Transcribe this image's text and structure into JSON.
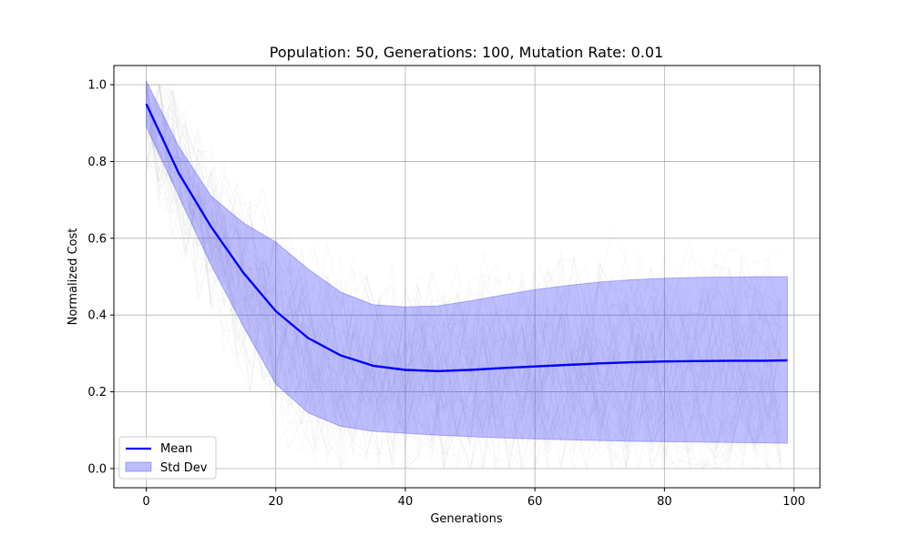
{
  "chart_data": {
    "type": "line",
    "title": "Population: 50, Generations: 100, Mutation Rate: 0.01",
    "xlabel": "Generations",
    "ylabel": "Normalized Cost",
    "xlim": [
      -5,
      104
    ],
    "ylim": [
      -0.05,
      1.05
    ],
    "xticks": [
      0,
      20,
      40,
      60,
      80,
      100
    ],
    "yticks": [
      0.0,
      0.2,
      0.4,
      0.6,
      0.8,
      1.0
    ],
    "xtick_labels": [
      "0",
      "20",
      "40",
      "60",
      "80",
      "100"
    ],
    "ytick_labels": [
      "0.0",
      "0.2",
      "0.4",
      "0.6",
      "0.8",
      "1.0"
    ],
    "grid": true,
    "legend": {
      "placement": "lower-left",
      "entries": [
        {
          "label": "Mean",
          "kind": "line",
          "color": "#0000ff"
        },
        {
          "label": "Std Dev",
          "kind": "patch",
          "color": "#0000ff"
        }
      ]
    },
    "x": [
      0,
      5,
      10,
      15,
      20,
      25,
      30,
      35,
      40,
      45,
      50,
      55,
      60,
      65,
      70,
      75,
      80,
      85,
      90,
      95,
      99
    ],
    "series": [
      {
        "name": "Mean",
        "color": "#0000ff",
        "values": [
          0.95,
          0.77,
          0.63,
          0.51,
          0.41,
          0.34,
          0.295,
          0.268,
          0.257,
          0.254,
          0.257,
          0.262,
          0.266,
          0.27,
          0.274,
          0.277,
          0.279,
          0.28,
          0.281,
          0.281,
          0.282
        ]
      },
      {
        "name": "Std Dev",
        "color": "#0000ff",
        "lower": [
          0.89,
          0.71,
          0.53,
          0.37,
          0.22,
          0.145,
          0.11,
          0.097,
          0.092,
          0.087,
          0.083,
          0.08,
          0.077,
          0.075,
          0.073,
          0.071,
          0.07,
          0.069,
          0.068,
          0.067,
          0.066
        ],
        "upper": [
          1.01,
          0.84,
          0.71,
          0.64,
          0.59,
          0.52,
          0.46,
          0.427,
          0.421,
          0.424,
          0.437,
          0.452,
          0.466,
          0.477,
          0.486,
          0.492,
          0.496,
          0.498,
          0.499,
          0.5,
          0.5
        ]
      }
    ],
    "background_runs": {
      "color": "#c8c8c8",
      "count": 60,
      "min": 0.0,
      "max": 1.0
    }
  }
}
